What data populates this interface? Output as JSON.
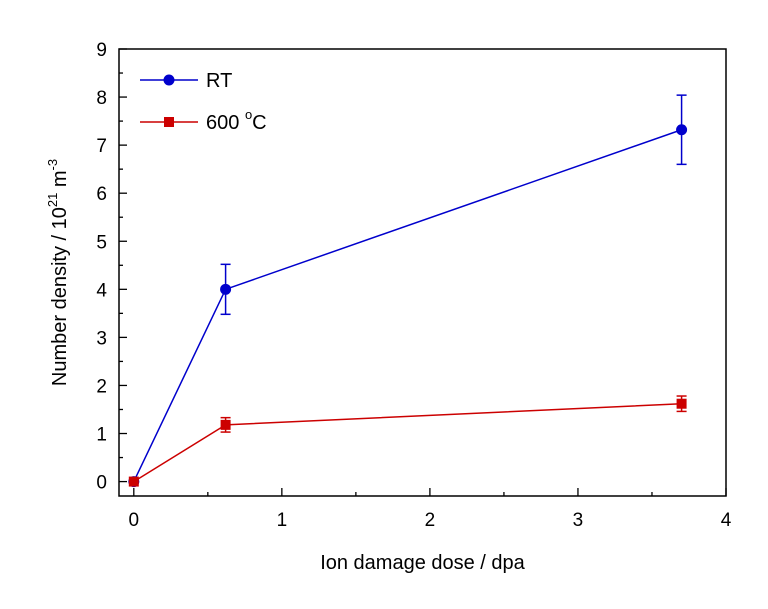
{
  "chart_data": {
    "type": "line",
    "xlabel": "Ion damage dose / dpa",
    "ylabel": {
      "prefix": "Number density / 10",
      "exp1": "21",
      "mid": " m",
      "exp2": "-3"
    },
    "xlim": [
      -0.1,
      4
    ],
    "ylim": [
      -0.3,
      9
    ],
    "xticks": [
      0,
      1,
      2,
      3,
      4
    ],
    "xtick_labels": [
      "0",
      "1",
      "2",
      "3",
      "4"
    ],
    "yticks": [
      0,
      1,
      2,
      3,
      4,
      5,
      6,
      7,
      8,
      9
    ],
    "ytick_labels": [
      "0",
      "1",
      "2",
      "3",
      "4",
      "5",
      "6",
      "7",
      "8",
      "9"
    ],
    "grid": false,
    "legend_position": "top-left",
    "series": [
      {
        "name": "RT",
        "legend": {
          "main": "RT",
          "sup": "",
          "tail": ""
        },
        "marker": "circle",
        "color": "#0000cc",
        "x": [
          0,
          0.62,
          3.7
        ],
        "y": [
          0,
          4.0,
          7.32
        ],
        "yerr": [
          0,
          0.52,
          0.72
        ]
      },
      {
        "name": "600 °C",
        "legend": {
          "main": "600 ",
          "sup": "o",
          "tail": "C"
        },
        "marker": "square",
        "color": "#cc0000",
        "x": [
          0,
          0.62,
          3.7
        ],
        "y": [
          0,
          1.18,
          1.62
        ],
        "yerr": [
          0,
          0.15,
          0.16
        ]
      }
    ]
  }
}
